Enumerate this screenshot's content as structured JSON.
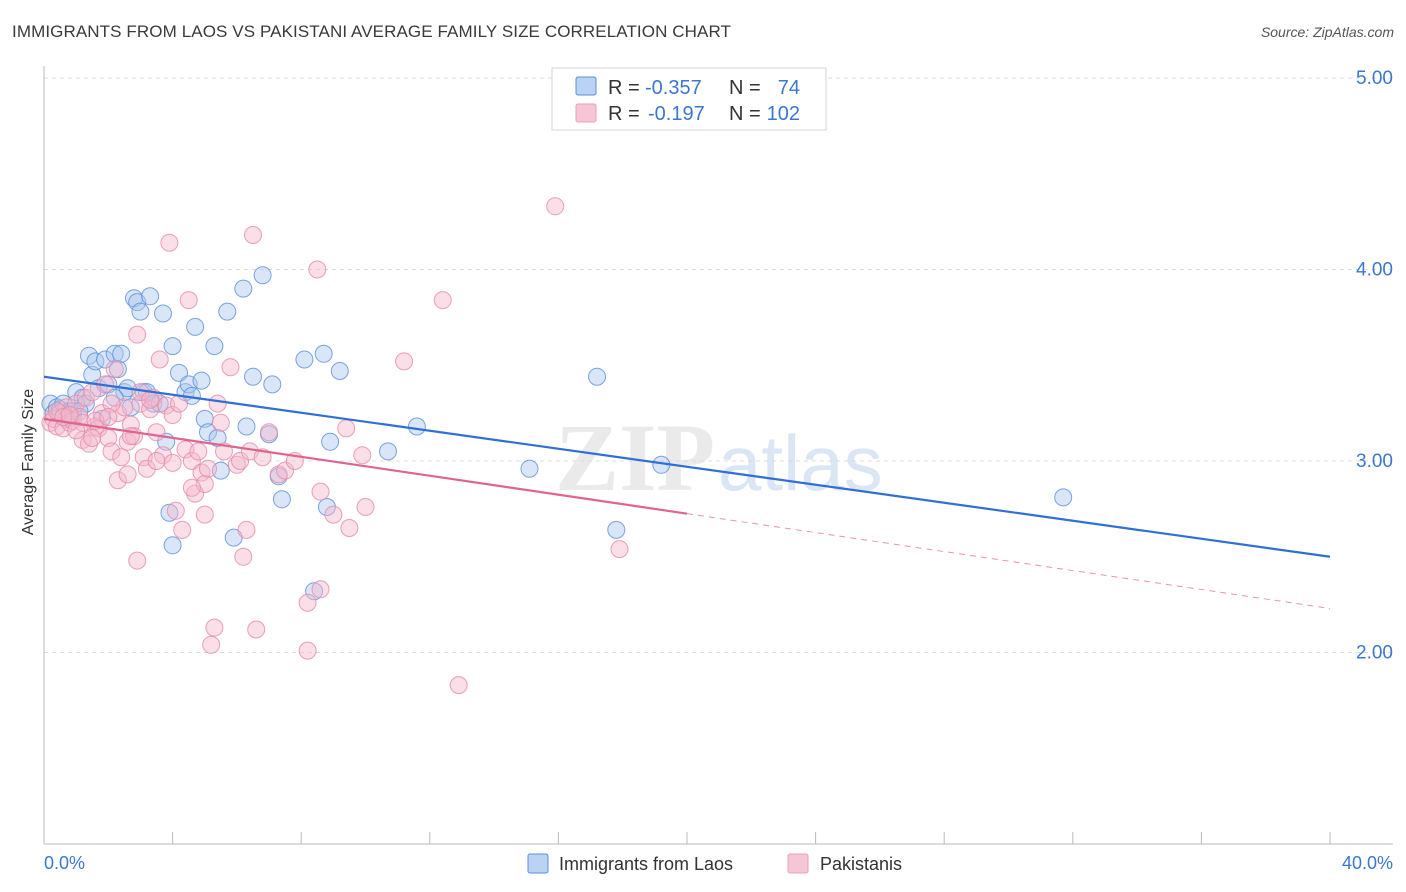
{
  "header": {
    "title": "IMMIGRANTS FROM LAOS VS PAKISTANI AVERAGE FAMILY SIZE CORRELATION CHART",
    "source": "Source: ZipAtlas.com"
  },
  "watermark": {
    "zip": "ZIP",
    "atlas": "atlas"
  },
  "colors": {
    "blue": "#2f6fd6",
    "blue_fill": "#aac8f0",
    "pink": "#e0648f",
    "pink_fill": "#f5b8cc",
    "value_text": "#3a78d0",
    "label_text": "#333333"
  },
  "legend_box": {
    "rows": [
      {
        "r_label": "R =",
        "r_value": "-0.357",
        "n_label": "N =",
        "n_value": "74"
      },
      {
        "r_label": "R =",
        "r_value": "-0.197",
        "n_label": "N =",
        "n_value": "102"
      }
    ]
  },
  "bottom_legend": [
    "Immigrants from Laos",
    "Pakistanis"
  ],
  "chart_data": {
    "type": "scatter",
    "title": "IMMIGRANTS FROM LAOS VS PAKISTANI AVERAGE FAMILY SIZE CORRELATION CHART",
    "xlabel": "",
    "ylabel": "Average Family Size",
    "xlim": [
      0,
      40
    ],
    "ylim": [
      1.0,
      5.1
    ],
    "x_tick_labels": [
      "0.0%",
      "40.0%"
    ],
    "y_ticks": [
      2.0,
      3.0,
      4.0,
      5.0
    ],
    "y_tick_labels": [
      "2.00",
      "3.00",
      "4.00",
      "5.00"
    ],
    "grid": true,
    "legend_position": "top-center",
    "series": [
      {
        "name": "Immigrants from Laos",
        "r": -0.357,
        "n": 74,
        "trend": {
          "x0": 0,
          "y0": 3.44,
          "x1": 40,
          "y1": 2.5,
          "dashed_from": null
        },
        "points": [
          [
            0.2,
            3.3
          ],
          [
            0.3,
            3.25
          ],
          [
            0.4,
            3.28
          ],
          [
            0.5,
            3.27
          ],
          [
            0.6,
            3.3
          ],
          [
            0.7,
            3.22
          ],
          [
            0.8,
            3.26
          ],
          [
            0.9,
            3.24
          ],
          [
            1.0,
            3.36
          ],
          [
            1.2,
            3.33
          ],
          [
            1.3,
            3.3
          ],
          [
            1.4,
            3.55
          ],
          [
            1.5,
            3.45
          ],
          [
            1.6,
            3.52
          ],
          [
            1.7,
            3.38
          ],
          [
            1.8,
            3.22
          ],
          [
            1.9,
            3.53
          ],
          [
            2.0,
            3.4
          ],
          [
            2.2,
            3.56
          ],
          [
            2.3,
            3.48
          ],
          [
            2.4,
            3.56
          ],
          [
            2.5,
            3.36
          ],
          [
            2.6,
            3.38
          ],
          [
            2.7,
            3.28
          ],
          [
            2.8,
            3.85
          ],
          [
            2.9,
            3.83
          ],
          [
            3.0,
            3.78
          ],
          [
            3.1,
            3.36
          ],
          [
            3.2,
            3.36
          ],
          [
            3.3,
            3.86
          ],
          [
            3.4,
            3.3
          ],
          [
            3.6,
            3.3
          ],
          [
            3.7,
            3.77
          ],
          [
            3.8,
            3.1
          ],
          [
            4.0,
            3.6
          ],
          [
            4.2,
            3.46
          ],
          [
            4.4,
            3.36
          ],
          [
            4.5,
            3.4
          ],
          [
            4.6,
            3.34
          ],
          [
            4.7,
            3.7
          ],
          [
            4.9,
            3.42
          ],
          [
            5.0,
            3.22
          ],
          [
            5.1,
            3.15
          ],
          [
            5.3,
            3.6
          ],
          [
            5.4,
            3.12
          ],
          [
            5.5,
            2.95
          ],
          [
            5.7,
            3.78
          ],
          [
            5.9,
            2.6
          ],
          [
            6.2,
            3.9
          ],
          [
            6.3,
            3.18
          ],
          [
            6.5,
            3.44
          ],
          [
            6.8,
            3.97
          ],
          [
            7.0,
            3.14
          ],
          [
            7.1,
            3.4
          ],
          [
            7.3,
            2.92
          ],
          [
            7.4,
            2.8
          ],
          [
            8.1,
            3.53
          ],
          [
            8.7,
            3.56
          ],
          [
            8.8,
            2.76
          ],
          [
            8.9,
            3.1
          ],
          [
            9.2,
            3.47
          ],
          [
            10.7,
            3.05
          ],
          [
            11.6,
            3.18
          ],
          [
            15.1,
            2.96
          ],
          [
            17.2,
            3.44
          ],
          [
            17.8,
            2.64
          ],
          [
            19.2,
            2.98
          ],
          [
            31.7,
            2.81
          ],
          [
            3.9,
            2.73
          ],
          [
            4.0,
            2.56
          ],
          [
            8.4,
            2.32
          ],
          [
            0.9,
            3.26
          ],
          [
            1.1,
            3.26
          ],
          [
            2.2,
            3.33
          ]
        ]
      },
      {
        "name": "Pakistanis",
        "r": -0.197,
        "n": 102,
        "trend": {
          "x0": 0,
          "y0": 3.22,
          "x1": 40,
          "y1": 2.23,
          "solid_until_x": 20
        },
        "points": [
          [
            0.2,
            3.2
          ],
          [
            0.3,
            3.22
          ],
          [
            0.4,
            3.18
          ],
          [
            0.5,
            3.25
          ],
          [
            0.6,
            3.17
          ],
          [
            0.7,
            3.28
          ],
          [
            0.8,
            3.2
          ],
          [
            0.9,
            3.21
          ],
          [
            1.0,
            3.3
          ],
          [
            1.1,
            3.23
          ],
          [
            1.2,
            3.11
          ],
          [
            1.3,
            3.33
          ],
          [
            1.4,
            3.09
          ],
          [
            1.5,
            3.36
          ],
          [
            1.6,
            3.18
          ],
          [
            1.7,
            3.17
          ],
          [
            1.8,
            3.25
          ],
          [
            1.9,
            3.4
          ],
          [
            2.0,
            3.12
          ],
          [
            2.1,
            3.05
          ],
          [
            2.2,
            3.48
          ],
          [
            2.3,
            3.25
          ],
          [
            2.4,
            3.02
          ],
          [
            2.5,
            3.28
          ],
          [
            2.6,
            3.1
          ],
          [
            2.7,
            3.19
          ],
          [
            2.8,
            3.13
          ],
          [
            2.9,
            3.66
          ],
          [
            3.0,
            3.3
          ],
          [
            3.1,
            3.02
          ],
          [
            3.2,
            2.96
          ],
          [
            3.3,
            3.27
          ],
          [
            3.4,
            3.33
          ],
          [
            3.5,
            3.15
          ],
          [
            3.6,
            3.53
          ],
          [
            3.7,
            3.03
          ],
          [
            3.8,
            3.29
          ],
          [
            3.9,
            4.14
          ],
          [
            4.0,
            3.24
          ],
          [
            4.1,
            2.74
          ],
          [
            4.2,
            3.3
          ],
          [
            4.3,
            2.64
          ],
          [
            4.4,
            3.06
          ],
          [
            4.5,
            3.84
          ],
          [
            4.6,
            3.0
          ],
          [
            4.7,
            2.83
          ],
          [
            4.8,
            3.05
          ],
          [
            4.9,
            2.94
          ],
          [
            5.0,
            2.88
          ],
          [
            5.1,
            2.96
          ],
          [
            5.2,
            2.04
          ],
          [
            5.3,
            2.13
          ],
          [
            5.4,
            3.3
          ],
          [
            5.5,
            3.2
          ],
          [
            5.6,
            3.05
          ],
          [
            5.8,
            3.49
          ],
          [
            6.0,
            2.98
          ],
          [
            6.1,
            3.0
          ],
          [
            6.2,
            2.5
          ],
          [
            6.3,
            2.64
          ],
          [
            6.4,
            3.05
          ],
          [
            6.5,
            4.18
          ],
          [
            6.6,
            2.12
          ],
          [
            7.0,
            3.15
          ],
          [
            7.3,
            2.93
          ],
          [
            7.5,
            2.95
          ],
          [
            7.8,
            3.0
          ],
          [
            8.2,
            2.26
          ],
          [
            8.2,
            2.01
          ],
          [
            8.5,
            4.0
          ],
          [
            8.6,
            2.33
          ],
          [
            8.6,
            2.84
          ],
          [
            9.0,
            2.72
          ],
          [
            9.4,
            3.17
          ],
          [
            9.5,
            2.65
          ],
          [
            9.9,
            3.03
          ],
          [
            10.0,
            2.76
          ],
          [
            11.2,
            3.52
          ],
          [
            12.4,
            3.84
          ],
          [
            12.9,
            1.83
          ],
          [
            15.9,
            4.33
          ],
          [
            17.9,
            2.54
          ],
          [
            2.3,
            2.9
          ],
          [
            2.9,
            2.48
          ],
          [
            3.5,
            3.0
          ],
          [
            4.0,
            2.99
          ],
          [
            1.2,
            3.2
          ],
          [
            1.6,
            3.21
          ],
          [
            2.1,
            3.3
          ],
          [
            2.6,
            2.93
          ],
          [
            3.0,
            3.36
          ],
          [
            0.4,
            3.26
          ],
          [
            0.6,
            3.23
          ],
          [
            0.8,
            3.24
          ],
          [
            1.0,
            3.16
          ],
          [
            1.5,
            3.12
          ],
          [
            2.0,
            3.23
          ],
          [
            2.7,
            3.13
          ],
          [
            3.3,
            3.32
          ],
          [
            4.6,
            2.86
          ],
          [
            5.0,
            2.72
          ],
          [
            6.8,
            3.02
          ]
        ]
      }
    ]
  }
}
